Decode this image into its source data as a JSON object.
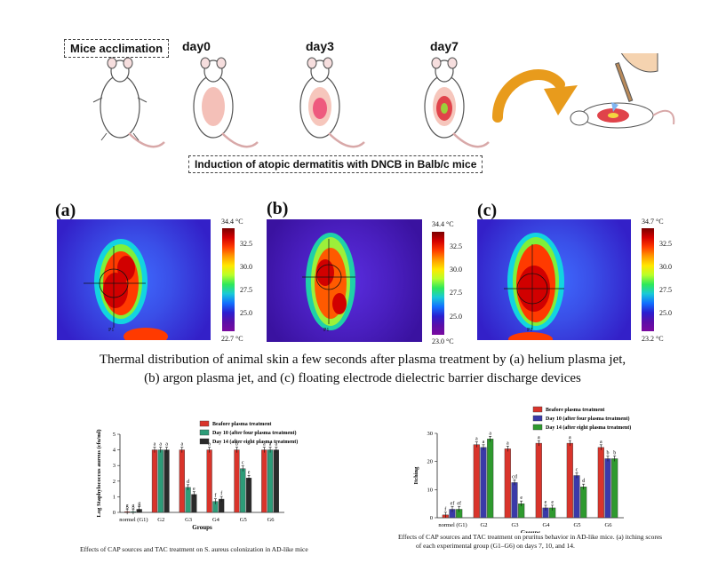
{
  "top_panel": {
    "stage_labels": {
      "acclimation": "Mice acclimation",
      "day0": "day0",
      "day3": "day3",
      "day7": "day7"
    },
    "induction_label": "Induction of atopic dermatitis with DNCB in Balb/c mice"
  },
  "thermal_panels": [
    {
      "letter": "(a)",
      "max_label": "34.4 °C",
      "min_label": "22.7 °C",
      "ticks": [
        "32.5",
        "30.0",
        "27.5",
        "25.0"
      ],
      "point_label": "P1"
    },
    {
      "letter": "(b)",
      "max_label": "34.4 °C",
      "min_label": "23.0 °C",
      "ticks": [
        "32.5",
        "30.0",
        "27.5",
        "25.0"
      ],
      "point_label": "P1"
    },
    {
      "letter": "(c)",
      "max_label": "34.7 °C",
      "min_label": "23.2 °C",
      "ticks": [
        "32.5",
        "30.0",
        "27.5",
        "25.0"
      ],
      "point_label": "P1"
    }
  ],
  "thermal_caption_line1": "Thermal distribution of animal skin a few seconds after plasma treatment by (a) helium plasma jet,",
  "thermal_caption_line2": "(b) argon plasma jet, and (c) floating electrode dielectric barrier discharge devices",
  "colors": {
    "before": "#d9342b",
    "day10": "#2d9c78",
    "day14": "#2a2a2a",
    "day10_itch": "#3a3aa8",
    "day14_itch": "#2e9a2e"
  },
  "chart_data": [
    {
      "type": "bar",
      "ylabel": "Log Staphylococcus aureus (cfu/ml)",
      "xlabel": "Groups",
      "ylim": [
        0,
        5
      ],
      "yticks": [
        "0",
        "1",
        "2",
        "3",
        "4",
        "5"
      ],
      "categories": [
        "normel (G1)",
        "G2",
        "G3",
        "G4",
        "G5",
        "G6"
      ],
      "series": [
        {
          "name": "Beafore plasma treatment",
          "values": [
            0.05,
            4.0,
            4.0,
            4.0,
            4.0,
            4.0
          ]
        },
        {
          "name": "Day 10 (after four plasma treatment)",
          "values": [
            0.05,
            4.0,
            1.6,
            0.7,
            2.8,
            4.0
          ]
        },
        {
          "name": "Day 14 (after eight plasma treatment)",
          "values": [
            0.2,
            4.0,
            1.15,
            0.85,
            2.2,
            4.0
          ]
        }
      ],
      "data_labels": [
        [
          "g",
          "a",
          "a",
          "a",
          "b",
          "a"
        ],
        [
          "g",
          "a",
          "d",
          "f",
          "c",
          "a"
        ],
        [
          "g",
          "a",
          "e",
          "f",
          "e",
          "a"
        ]
      ],
      "caption": "Effects of CAP sources and TAC treatment on S. aureus colonization in AD-like mice"
    },
    {
      "type": "bar",
      "ylabel": "Itching",
      "xlabel": "Groups",
      "ylim": [
        0,
        30
      ],
      "yticks": [
        "0",
        "10",
        "20",
        "30"
      ],
      "categories": [
        "normel (G1)",
        "G2",
        "G3",
        "G4",
        "G5",
        "G6"
      ],
      "series": [
        {
          "name": "Beafore plasma treatment",
          "values": [
            1,
            26,
            24.5,
            26.5,
            26.5,
            25
          ]
        },
        {
          "name": "Day 10 (after four plasma treatment)",
          "values": [
            3,
            25,
            12.5,
            3.5,
            15,
            21
          ]
        },
        {
          "name": "Day 14 (after eight plasma treatment)",
          "values": [
            3,
            28,
            5,
            3.5,
            11,
            21
          ]
        }
      ],
      "data_labels": [
        [
          "f",
          "a",
          "a",
          "a",
          "a",
          "a"
        ],
        [
          "ef",
          "a",
          "cd",
          "e",
          "c",
          "b"
        ],
        [
          "ef",
          "a",
          "e",
          "e",
          "d",
          "b"
        ]
      ],
      "caption_line1": "Effects of CAP sources and TAC treatment on pruritus behavior in AD-like mice. (a) itching scores",
      "caption_line2": "of each experimental group (G1–G6) on days 7, 10, and 14."
    }
  ]
}
